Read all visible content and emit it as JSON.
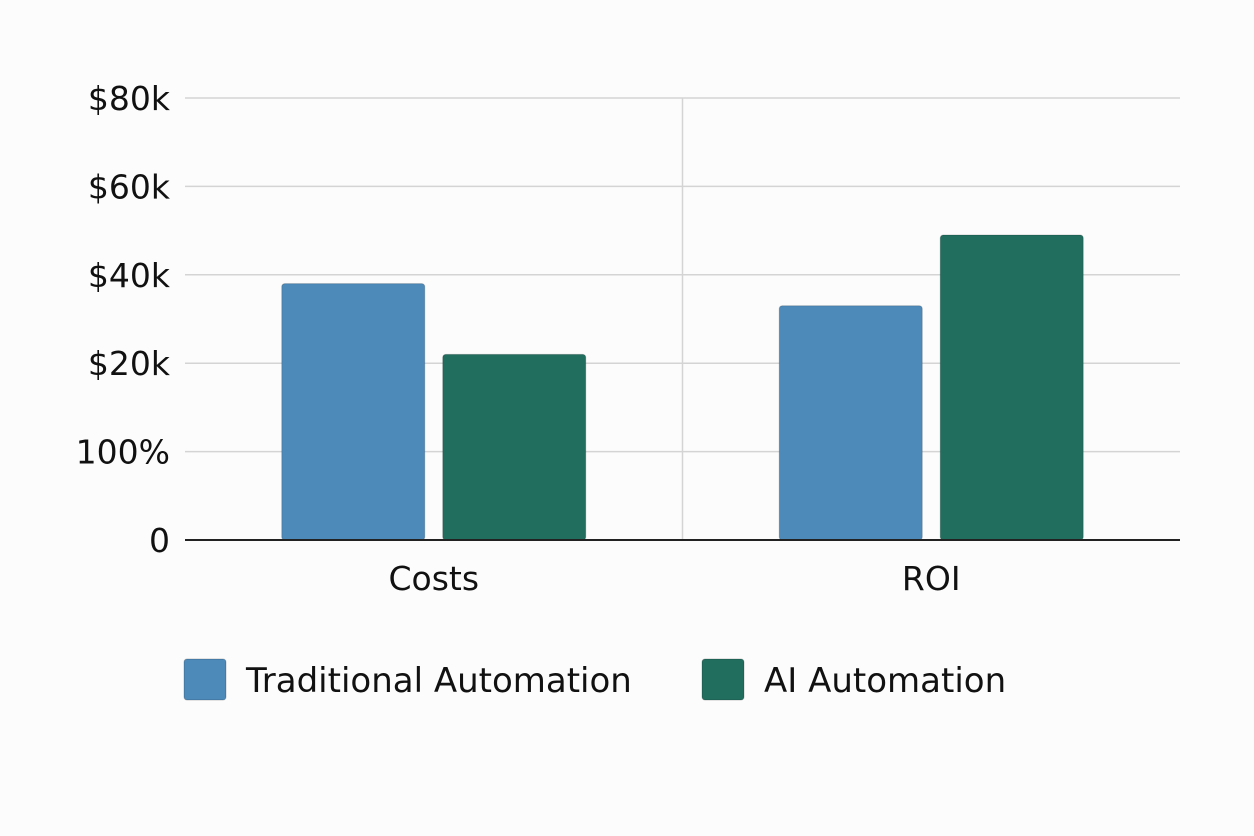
{
  "chart_data": {
    "type": "bar",
    "title": "",
    "xlabel": "",
    "ylabel": "",
    "categories": [
      "Costs",
      "ROI"
    ],
    "y_tick_labels": [
      "0",
      "100%",
      "$20k",
      "$40k",
      "$60k",
      "$80k"
    ],
    "ylim": [
      0,
      5
    ],
    "grid": true,
    "legend_position": "bottom",
    "series": [
      {
        "name": "Traditional Automation",
        "color": "#4d8aba",
        "values": [
          2.9,
          2.65
        ]
      },
      {
        "name": "AI Automation",
        "color": "#216e5f",
        "values": [
          2.1,
          3.45
        ]
      }
    ]
  }
}
